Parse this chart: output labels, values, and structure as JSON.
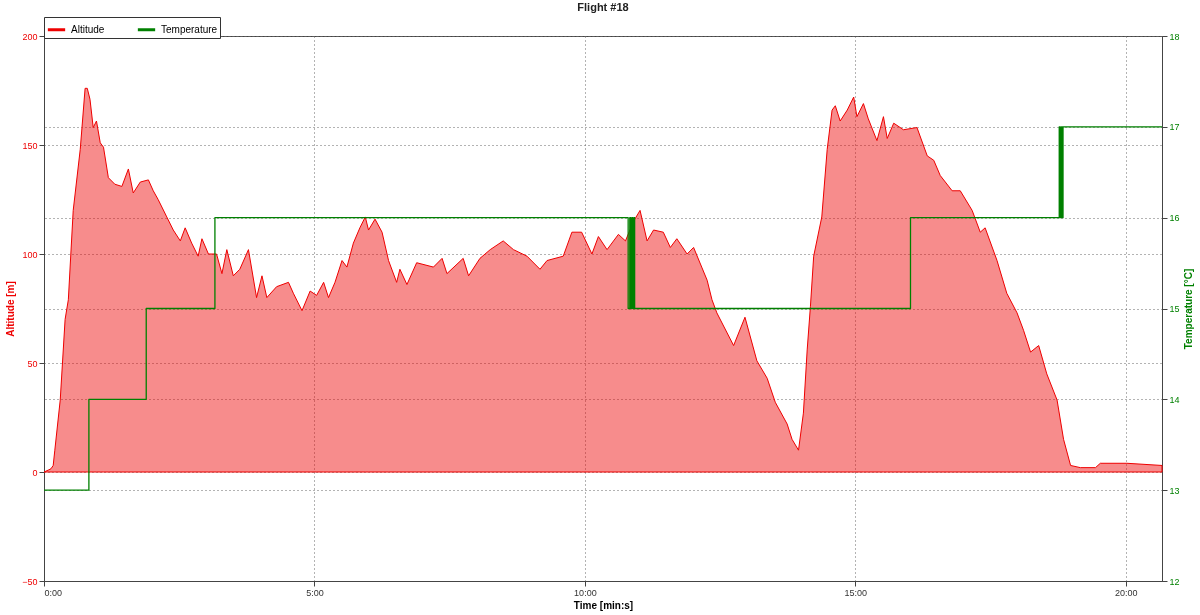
{
  "chart_data": {
    "type": "area",
    "title": "Flight #18",
    "xlabel": "Time [min:s]",
    "ylabel": "Altitude [m]",
    "y2label": "Temperature [°C]",
    "xlim": [
      0,
      20.67
    ],
    "xticks": [
      {
        "value": 0,
        "label": "0:00"
      },
      {
        "value": 5,
        "label": "5:00"
      },
      {
        "value": 10,
        "label": "10:00"
      },
      {
        "value": 15,
        "label": "15:00"
      },
      {
        "value": 20,
        "label": "20:00"
      }
    ],
    "ylim": [
      -50,
      200
    ],
    "yticks": [
      -50,
      0,
      50,
      100,
      150,
      200
    ],
    "y2lim": [
      12,
      18
    ],
    "y2ticks": [
      12,
      13,
      14,
      15,
      16,
      17,
      18
    ],
    "grid": true,
    "legend": "top left",
    "series": [
      {
        "name": "Altitude",
        "color": "#ee0000",
        "x": [
          0,
          0.09,
          0.13,
          0.17,
          0.2,
          0.3,
          0.39,
          0.45,
          0.54,
          0.67,
          0.76,
          0.8,
          0.85,
          0.91,
          0.97,
          1.04,
          1.1,
          1.19,
          1.31,
          1.44,
          1.56,
          1.65,
          1.78,
          1.93,
          2.02,
          2.11,
          2.27,
          2.39,
          2.52,
          2.61,
          2.73,
          2.85,
          2.92,
          3.04,
          3.19,
          3.29,
          3.38,
          3.5,
          3.62,
          3.78,
          3.93,
          4.03,
          4.12,
          4.3,
          4.52,
          4.61,
          4.77,
          4.92,
          5.04,
          5.17,
          5.26,
          5.38,
          5.51,
          5.6,
          5.72,
          5.84,
          5.94,
          6.0,
          6.12,
          6.25,
          6.37,
          6.52,
          6.58,
          6.71,
          6.89,
          7.2,
          7.36,
          7.45,
          7.75,
          7.85,
          8.06,
          8.25,
          8.49,
          8.68,
          8.93,
          9.17,
          9.3,
          9.6,
          9.76,
          9.94,
          10.13,
          10.25,
          10.41,
          10.62,
          10.75,
          10.9,
          11.02,
          11.15,
          11.27,
          11.45,
          11.58,
          11.7,
          11.89,
          12.01,
          12.16,
          12.26,
          12.35,
          12.44,
          12.75,
          12.96,
          13.18,
          13.37,
          13.52,
          13.74,
          13.83,
          13.95,
          14.04,
          14.11,
          14.17,
          14.23,
          14.38,
          14.48,
          14.57,
          14.63,
          14.72,
          14.85,
          14.97,
          15.03,
          15.15,
          15.24,
          15.4,
          15.52,
          15.59,
          15.71,
          15.89,
          16.14,
          16.33,
          16.45,
          16.57,
          16.79,
          16.94,
          17.16,
          17.31,
          17.4,
          17.62,
          17.8,
          17.99,
          18.11,
          18.24,
          18.39,
          18.54,
          18.73,
          18.85,
          18.98,
          19.16,
          19.44,
          19.53,
          20.02,
          20.67
        ],
        "values": [
          0,
          1,
          1.5,
          3,
          10,
          33,
          70,
          79,
          120,
          148,
          176,
          176,
          171,
          158,
          161,
          151,
          149,
          135,
          132,
          131,
          139,
          128,
          133,
          134,
          129,
          125,
          117,
          111,
          106,
          112,
          105,
          99,
          107,
          100,
          100,
          91,
          102,
          90,
          93,
          102,
          80,
          90,
          80,
          85,
          87,
          82,
          74,
          83,
          81,
          87,
          80,
          87,
          97,
          94,
          105,
          112,
          117,
          111,
          116,
          110,
          97,
          87,
          93,
          86,
          96,
          94,
          98,
          91,
          98,
          90,
          98,
          102,
          106,
          102,
          99,
          93,
          97,
          99,
          110,
          110,
          100,
          108,
          102,
          109,
          106,
          115,
          120,
          106,
          111,
          110,
          103,
          107,
          100,
          103,
          94,
          88,
          79,
          73,
          58,
          71,
          51,
          43,
          32,
          22,
          15,
          10,
          27,
          56,
          76,
          99,
          117,
          148,
          166,
          168,
          161,
          166,
          172,
          163,
          169,
          162,
          152,
          163,
          153,
          160,
          157,
          158,
          145,
          143,
          136,
          129,
          129,
          120,
          110,
          112,
          97,
          82,
          73,
          65,
          55,
          58,
          45,
          33,
          15,
          3,
          2,
          2,
          4,
          4,
          3
        ]
      },
      {
        "name": "Temperature",
        "type": "step",
        "axis": "y2",
        "color": "#008000",
        "x": [
          0,
          0.83,
          1.89,
          3.16,
          10.8,
          10.83,
          10.85,
          10.87,
          10.89,
          10.91,
          10.92,
          16.02,
          18.77,
          18.79,
          18.81,
          18.83,
          18.84,
          20.67
        ],
        "values": [
          13,
          14,
          15,
          16,
          15,
          16,
          15,
          16,
          15,
          16,
          15,
          16,
          17,
          16,
          17,
          16,
          17,
          17
        ]
      }
    ]
  }
}
